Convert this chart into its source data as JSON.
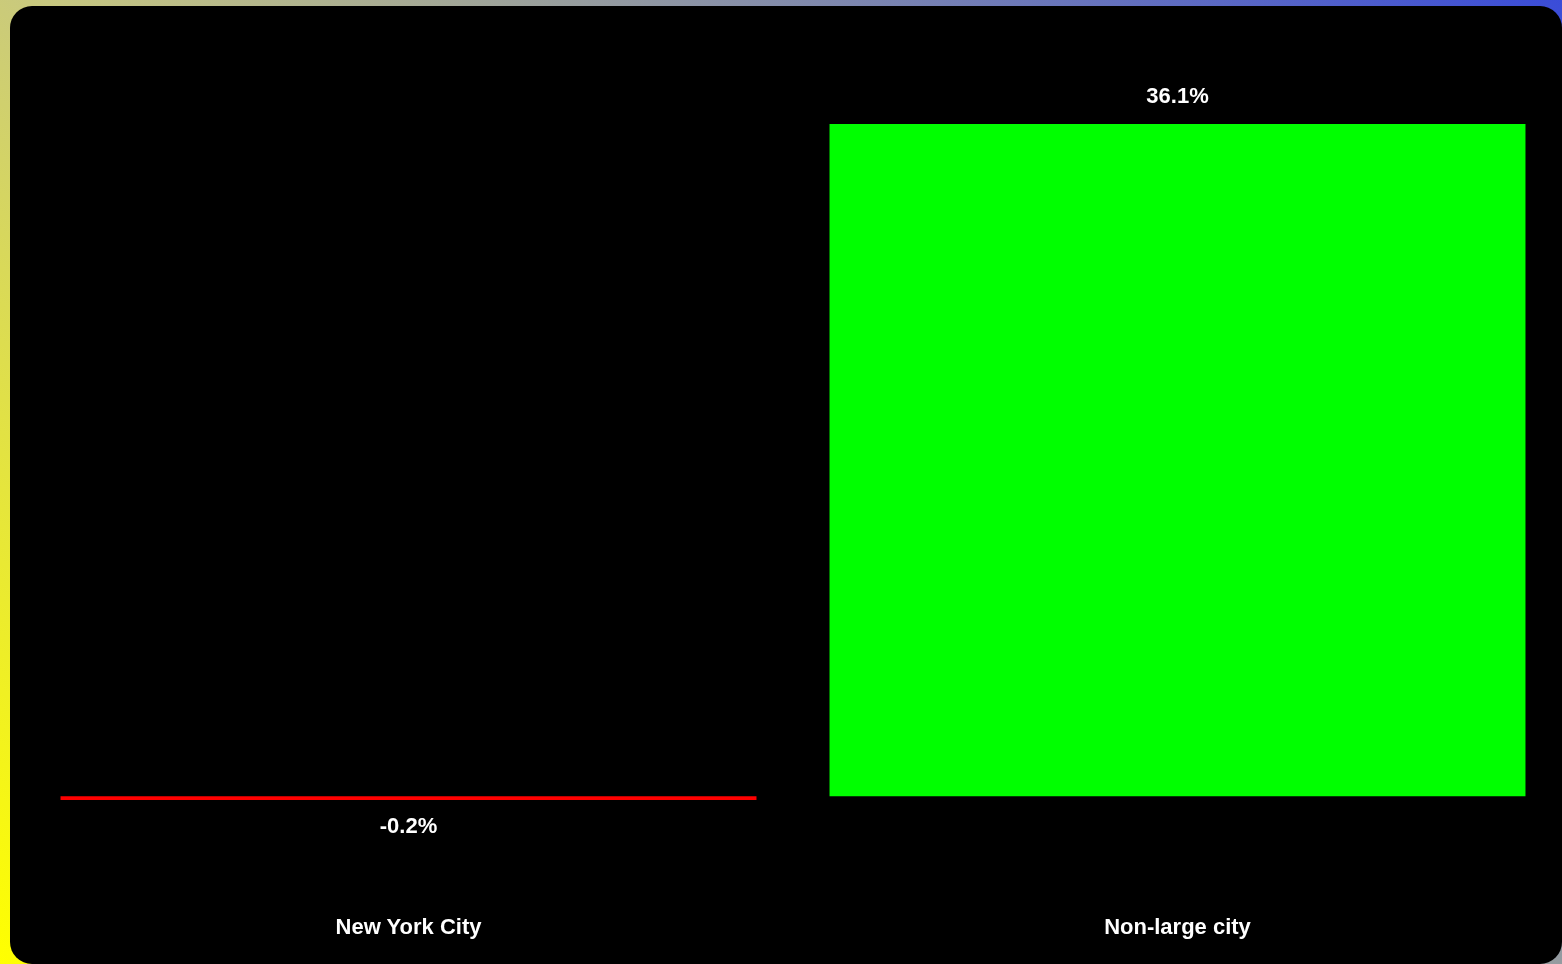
{
  "chart_data": {
    "type": "bar",
    "categories": [
      "New York City",
      "Non-large city"
    ],
    "values": [
      -0.2,
      36.1
    ],
    "colors": [
      "#ff0000",
      "#00ff00"
    ],
    "value_labels": [
      "-0.2%",
      "36.1%"
    ]
  }
}
